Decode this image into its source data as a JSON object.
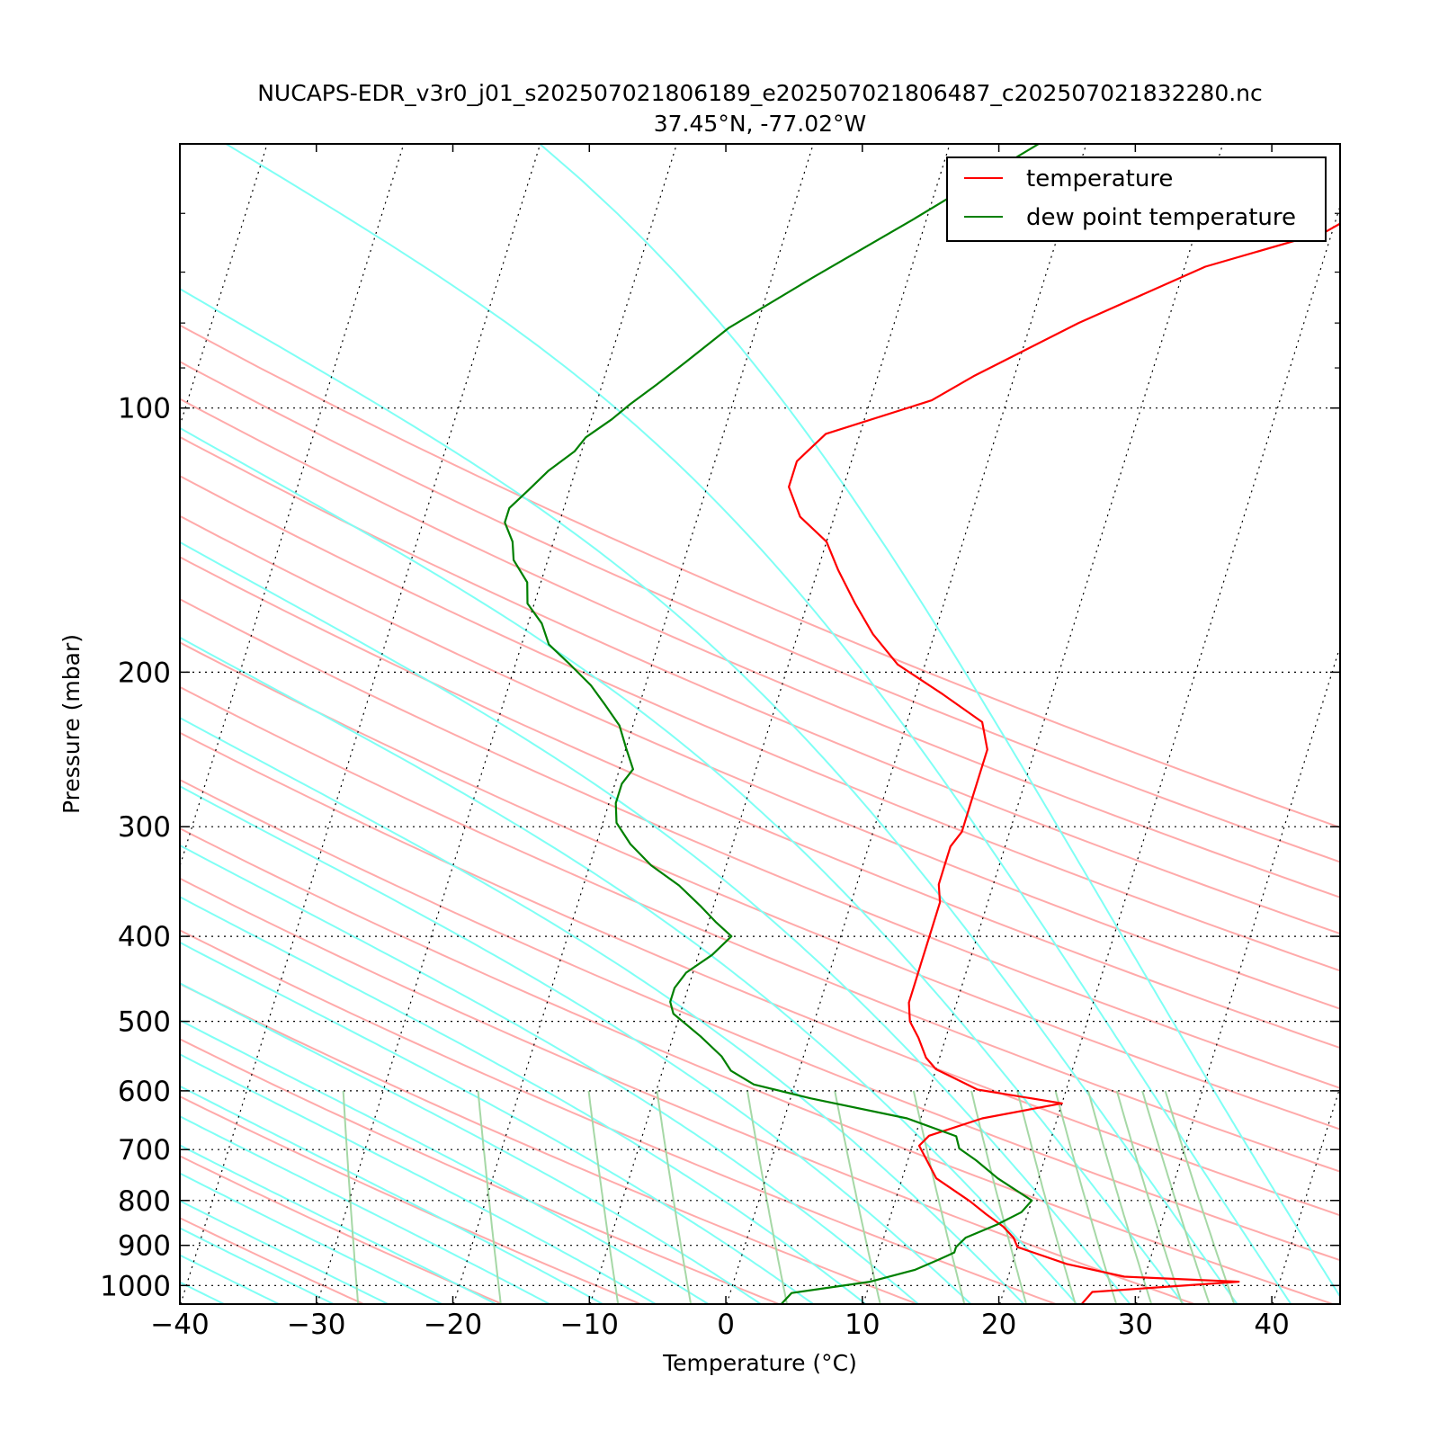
{
  "chart_data": {
    "type": "line",
    "title": "NUCAPS-EDR_v3r0_j01_s202507021806189_e202507021806487_c202507021832280.nc",
    "subtitle": "37.45°N, -77.02°W",
    "xlabel": "Temperature (°C)",
    "ylabel": "Pressure (mbar)",
    "x_ticks": [
      "−40",
      "−30",
      "−20",
      "−10",
      "0",
      "10",
      "20",
      "30",
      "40"
    ],
    "y_ticks": [
      "100",
      "200",
      "300",
      "400",
      "500",
      "600",
      "700",
      "800",
      "900",
      "1000"
    ],
    "xlim": [
      -40,
      45
    ],
    "ylim": [
      1050,
      50
    ],
    "y_scale": "log",
    "skew": "skew-T log-P",
    "grid": true,
    "legend_position": "top-right",
    "series": [
      {
        "name": "temperature",
        "color": "#ff0000",
        "points": [
          [
            26,
            1050
          ],
          [
            26.5,
            1017
          ],
          [
            37,
            990
          ],
          [
            28.5,
            977
          ],
          [
            24,
            945
          ],
          [
            20,
            904
          ],
          [
            19.5,
            882
          ],
          [
            18.5,
            857
          ],
          [
            17,
            830
          ],
          [
            15.5,
            802
          ],
          [
            12.5,
            755
          ],
          [
            10.5,
            693
          ],
          [
            11,
            675
          ],
          [
            14.5,
            645
          ],
          [
            20,
            620
          ],
          [
            13.5,
            598
          ],
          [
            11.5,
            580
          ],
          [
            10,
            567
          ],
          [
            9,
            550
          ],
          [
            8,
            522
          ],
          [
            7,
            500
          ],
          [
            6.5,
            476
          ],
          [
            6.5,
            452
          ],
          [
            6.5,
            430
          ],
          [
            6.5,
            410
          ],
          [
            6.5,
            387
          ],
          [
            6.5,
            366
          ],
          [
            6,
            349
          ],
          [
            6,
            333
          ],
          [
            6,
            316
          ],
          [
            6.5,
            304
          ],
          [
            6.5,
            282
          ],
          [
            6.5,
            265
          ],
          [
            6.5,
            245
          ],
          [
            5.5,
            228
          ],
          [
            2,
            212
          ],
          [
            -2,
            196
          ],
          [
            -4.5,
            181
          ],
          [
            -6.5,
            167
          ],
          [
            -8.5,
            153
          ],
          [
            -10,
            142
          ],
          [
            -12.5,
            133
          ],
          [
            -14,
            123
          ],
          [
            -14,
            115
          ],
          [
            -12.5,
            107
          ],
          [
            -5.5,
            98
          ],
          [
            -3,
            92
          ],
          [
            3.5,
            80
          ],
          [
            11.5,
            69
          ],
          [
            19.5,
            63
          ],
          [
            21.5,
            60
          ],
          [
            28,
            50
          ]
        ]
      },
      {
        "name": "dew point temperature",
        "color": "#008000",
        "points": [
          [
            4,
            1050
          ],
          [
            4.5,
            1020
          ],
          [
            10,
            990
          ],
          [
            13,
            960
          ],
          [
            14.5,
            935
          ],
          [
            15.5,
            917
          ],
          [
            15.5,
            904
          ],
          [
            16,
            882
          ],
          [
            18,
            852
          ],
          [
            19.5,
            825
          ],
          [
            20,
            800
          ],
          [
            17,
            755
          ],
          [
            15,
            720
          ],
          [
            13.5,
            698
          ],
          [
            13,
            676
          ],
          [
            9,
            645
          ],
          [
            1.5,
            612
          ],
          [
            -3,
            590
          ],
          [
            -5,
            569
          ],
          [
            -6,
            548
          ],
          [
            -8,
            520
          ],
          [
            -10.5,
            490
          ],
          [
            -11,
            475
          ],
          [
            -11,
            458
          ],
          [
            -10.5,
            440
          ],
          [
            -9,
            420
          ],
          [
            -8,
            400
          ],
          [
            -9.5,
            385
          ],
          [
            -11,
            369
          ],
          [
            -13,
            350
          ],
          [
            -15.5,
            332
          ],
          [
            -17.5,
            314
          ],
          [
            -19,
            297
          ],
          [
            -19.5,
            282
          ],
          [
            -19.5,
            268
          ],
          [
            -19,
            258
          ],
          [
            -20,
            244
          ],
          [
            -21,
            230
          ],
          [
            -22.5,
            218
          ],
          [
            -24,
            207
          ],
          [
            -26,
            196
          ],
          [
            -28,
            186
          ],
          [
            -29,
            176
          ],
          [
            -30.5,
            167
          ],
          [
            -31,
            158
          ],
          [
            -32.5,
            149
          ],
          [
            -33,
            142
          ],
          [
            -34,
            135
          ],
          [
            -34,
            130
          ],
          [
            -33,
            124
          ],
          [
            -32,
            118
          ],
          [
            -30.5,
            112
          ],
          [
            -30,
            108
          ],
          [
            -28.5,
            103
          ],
          [
            -27.5,
            99
          ],
          [
            -26,
            94
          ],
          [
            -24.5,
            89
          ],
          [
            -22,
            81
          ],
          [
            -17,
            71
          ],
          [
            -11,
            61
          ],
          [
            -3.5,
            50
          ]
        ]
      }
    ],
    "reference_lines": {
      "isobars_dotted": [
        100,
        200,
        300,
        400,
        500,
        600,
        700,
        800,
        900,
        1000
      ],
      "isotherms_dotted_step": 10,
      "dry_adiabat_color": "#ffaaaa",
      "moist_adiabat_color": "#7ffff5",
      "mixing_ratio_color": "#a6d8a6"
    }
  }
}
